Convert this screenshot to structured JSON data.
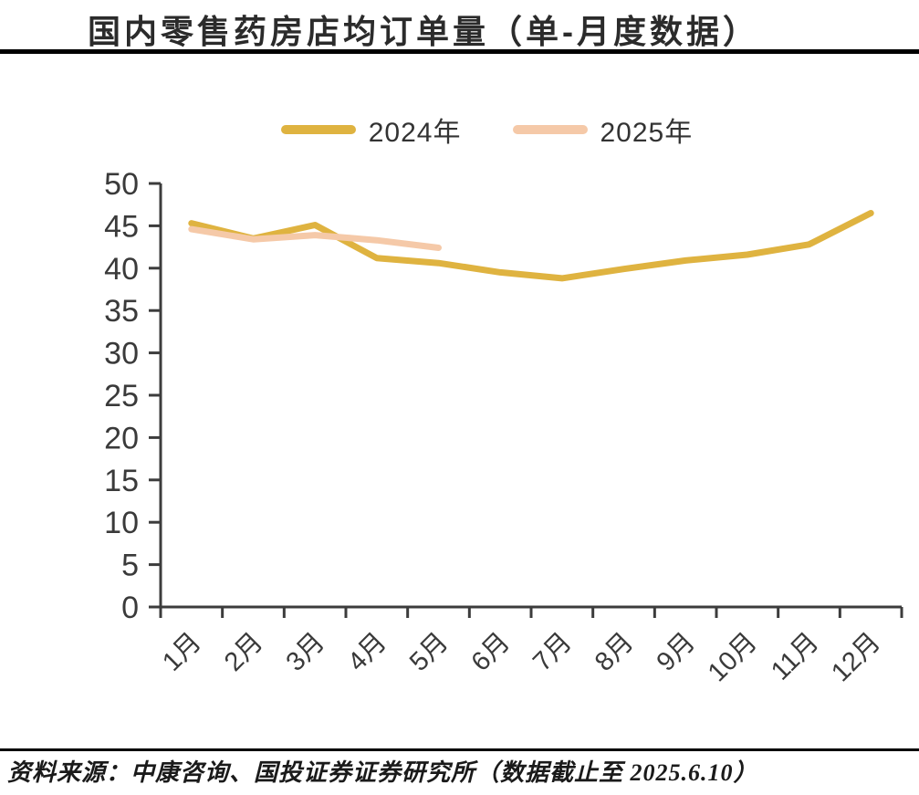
{
  "title": "国内零售药房店均订单量（单-月度数据）",
  "source_note": "资料来源：中康咨询、国投证券证券研究所（数据截止至 2025.6.10）",
  "colors": {
    "series_2024": "#DFB340",
    "series_2025": "#F5C9A8",
    "axis": "#3C3C3C",
    "tick_label": "#3A3A3A",
    "rule": "#000000"
  },
  "legend": {
    "items": [
      {
        "label": "2024年",
        "color": "#DFB340"
      },
      {
        "label": "2025年",
        "color": "#F5C9A8"
      }
    ]
  },
  "chart_data": {
    "type": "line",
    "title": "国内零售药房店均订单量（单-月度数据）",
    "categories": [
      "1月",
      "2月",
      "3月",
      "4月",
      "5月",
      "6月",
      "7月",
      "8月",
      "9月",
      "10月",
      "11月",
      "12月"
    ],
    "series": [
      {
        "name": "2024年",
        "color": "#DFB340",
        "values": [
          45.3,
          43.5,
          45.1,
          41.2,
          40.6,
          39.5,
          38.8,
          39.9,
          40.9,
          41.6,
          42.8,
          46.5
        ]
      },
      {
        "name": "2025年",
        "color": "#F5C9A8",
        "values": [
          44.6,
          43.4,
          43.9,
          43.3,
          42.4,
          null,
          null,
          null,
          null,
          null,
          null,
          null
        ]
      }
    ],
    "xlabel": "",
    "ylabel": "",
    "ylim": [
      0,
      50
    ],
    "yticks": [
      0,
      5,
      10,
      15,
      20,
      25,
      30,
      35,
      40,
      45,
      50
    ],
    "grid": false,
    "legend_position": "top",
    "x_tick_label_rotation": -45
  }
}
